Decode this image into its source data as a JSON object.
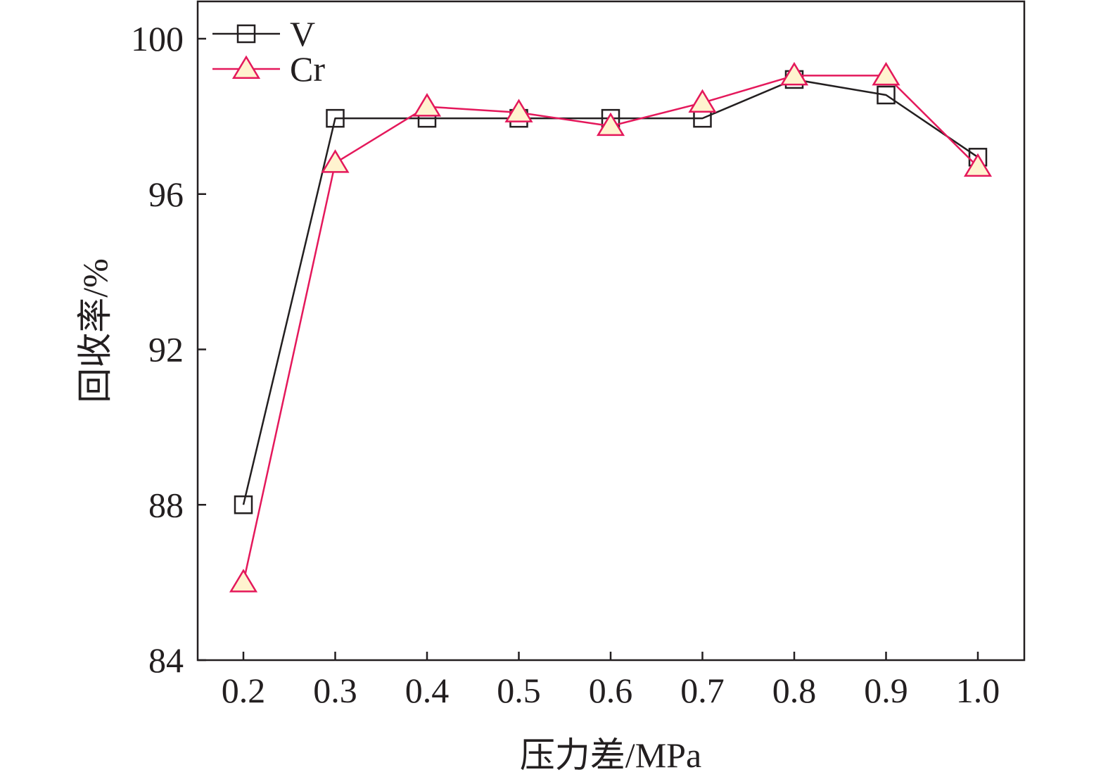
{
  "chart_data": {
    "type": "line",
    "xlabel": "压力差/MPa",
    "ylabel": "回收率/%",
    "x": [
      0.2,
      0.3,
      0.4,
      0.5,
      0.6,
      0.7,
      0.8,
      0.9,
      1.0
    ],
    "x_tick_labels": [
      "0.2",
      "0.3",
      "0.4",
      "0.5",
      "0.6",
      "0.7",
      "0.8",
      "0.9",
      "1.0"
    ],
    "y_ticks": [
      84,
      88,
      92,
      96,
      100
    ],
    "y_tick_labels": [
      "84",
      "88",
      "92",
      "96",
      "100"
    ],
    "xlim": [
      0.15,
      1.05
    ],
    "ylim": [
      84,
      101
    ],
    "grid": false,
    "legend_position": "top-left",
    "series": [
      {
        "name": "V",
        "marker": "square",
        "line_color": "#231f20",
        "marker_stroke": "#231f20",
        "marker_fill": "none",
        "values": [
          88.0,
          97.95,
          97.95,
          97.95,
          97.95,
          97.95,
          98.95,
          98.55,
          96.95
        ]
      },
      {
        "name": "Cr",
        "marker": "triangle",
        "line_color": "#e4185b",
        "marker_stroke": "#e4185b",
        "marker_fill": "#fff3cf",
        "values": [
          86.0,
          96.8,
          98.25,
          98.1,
          97.75,
          98.35,
          99.05,
          99.05,
          96.7
        ]
      }
    ]
  }
}
